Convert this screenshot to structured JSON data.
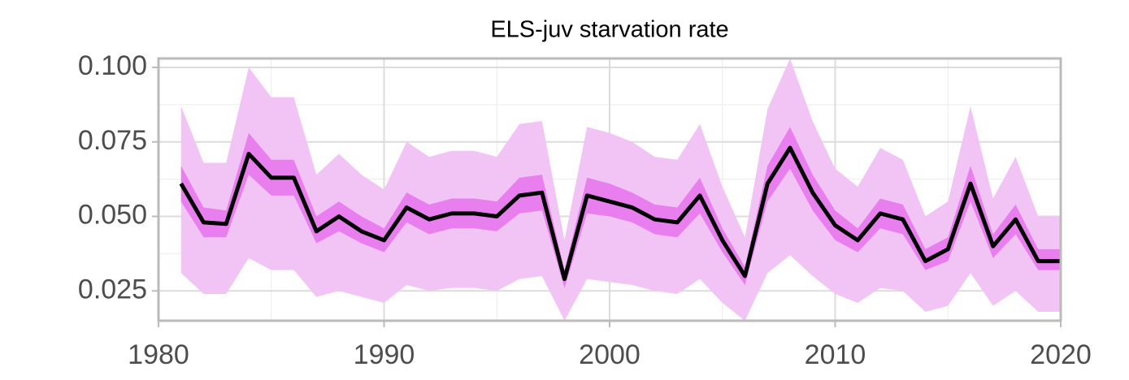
{
  "chart_data": {
    "type": "line",
    "title": "ELS-juv starvation rate",
    "x": [
      1981,
      1982,
      1983,
      1984,
      1985,
      1986,
      1987,
      1988,
      1989,
      1990,
      1991,
      1992,
      1993,
      1994,
      1995,
      1996,
      1997,
      1998,
      1999,
      2000,
      2001,
      2002,
      2003,
      2004,
      2005,
      2006,
      2007,
      2008,
      2009,
      2010,
      2011,
      2012,
      2013,
      2014,
      2015,
      2016,
      2017,
      2018,
      2019,
      2020
    ],
    "series": [
      {
        "color": "#f2c4f6",
        "upper": [
          0.087,
          0.068,
          0.068,
          0.1,
          0.09,
          0.09,
          0.064,
          0.071,
          0.064,
          0.059,
          0.075,
          0.07,
          0.072,
          0.072,
          0.07,
          0.081,
          0.082,
          0.042,
          0.08,
          0.078,
          0.075,
          0.07,
          0.069,
          0.081,
          0.06,
          0.043,
          0.086,
          0.103,
          0.082,
          0.066,
          0.06,
          0.073,
          0.069,
          0.05,
          0.055,
          0.087,
          0.056,
          0.07,
          0.05,
          0.05
        ],
        "lower": [
          0.031,
          0.024,
          0.024,
          0.036,
          0.032,
          0.032,
          0.023,
          0.025,
          0.023,
          0.021,
          0.027,
          0.025,
          0.026,
          0.026,
          0.025,
          0.029,
          0.03,
          0.015,
          0.029,
          0.028,
          0.027,
          0.025,
          0.024,
          0.029,
          0.021,
          0.015,
          0.031,
          0.037,
          0.03,
          0.024,
          0.021,
          0.026,
          0.025,
          0.018,
          0.02,
          0.031,
          0.02,
          0.025,
          0.018,
          0.018
        ]
      },
      {
        "color": "#e97fee",
        "upper": [
          0.067,
          0.053,
          0.052,
          0.078,
          0.069,
          0.069,
          0.05,
          0.055,
          0.05,
          0.046,
          0.058,
          0.054,
          0.056,
          0.056,
          0.055,
          0.063,
          0.064,
          0.032,
          0.063,
          0.061,
          0.058,
          0.054,
          0.053,
          0.063,
          0.046,
          0.033,
          0.067,
          0.08,
          0.064,
          0.052,
          0.046,
          0.056,
          0.054,
          0.039,
          0.043,
          0.067,
          0.044,
          0.054,
          0.039,
          0.039
        ],
        "lower": [
          0.055,
          0.043,
          0.043,
          0.064,
          0.057,
          0.057,
          0.041,
          0.045,
          0.041,
          0.038,
          0.048,
          0.044,
          0.046,
          0.046,
          0.045,
          0.051,
          0.052,
          0.026,
          0.051,
          0.05,
          0.048,
          0.044,
          0.043,
          0.051,
          0.038,
          0.027,
          0.055,
          0.066,
          0.052,
          0.042,
          0.038,
          0.046,
          0.044,
          0.032,
          0.035,
          0.055,
          0.036,
          0.044,
          0.032,
          0.032
        ]
      },
      {
        "color": "#000000",
        "values": [
          0.061,
          0.048,
          0.0475,
          0.071,
          0.063,
          0.063,
          0.045,
          0.05,
          0.045,
          0.042,
          0.053,
          0.049,
          0.051,
          0.051,
          0.05,
          0.057,
          0.058,
          0.029,
          0.057,
          0.055,
          0.053,
          0.049,
          0.048,
          0.057,
          0.042,
          0.03,
          0.061,
          0.073,
          0.058,
          0.047,
          0.042,
          0.051,
          0.049,
          0.035,
          0.039,
          0.061,
          0.04,
          0.049,
          0.035,
          0.035
        ]
      }
    ],
    "xlim": [
      1980,
      2020
    ],
    "xticks": [
      1980,
      1990,
      2000,
      2010,
      2020
    ],
    "ylim": [
      0.015,
      0.103
    ],
    "yticks": [
      0.025,
      {
        "value": 0.05,
        "label": "0.050"
      },
      0.075,
      {
        "value": 0.1,
        "label": "0.100"
      }
    ],
    "grid": true
  }
}
